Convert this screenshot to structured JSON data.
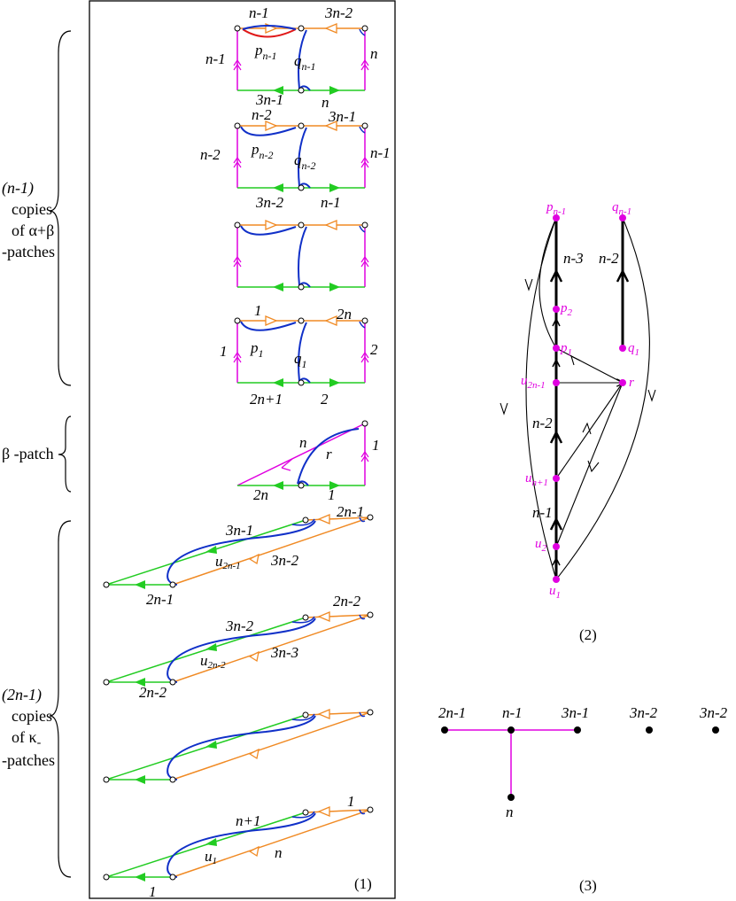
{
  "colors": {
    "magenta": "#e000e0",
    "green": "#22cc22",
    "orange": "#f08a24",
    "blue": "#1030c8",
    "red": "#e01818",
    "black": "#000000"
  },
  "panel1": {
    "caption": "(1)",
    "group1": {
      "line1": "(n-1)",
      "line2": "copies",
      "line3": "of α+β",
      "line4": "-patches"
    },
    "group2": {
      "label": "β -patch"
    },
    "group3": {
      "line1": "(2n-1)",
      "line2": "copies",
      "line3": "of κ",
      "line3_sub": "-",
      "line4": "-patches"
    },
    "ab1": {
      "top_left": "n-1",
      "top_right": "3n-2",
      "left": "n-1",
      "right": "n",
      "bottom_left": "3n-1",
      "bottom_right": "n",
      "p": "p",
      "p_sub": "n-1",
      "q": "q",
      "q_sub": "n-1"
    },
    "ab2": {
      "top_left": "n-2",
      "top_right": "3n-1",
      "left": "n-2",
      "right": "n-1",
      "bottom_left": "3n-2",
      "bottom_right": "n-1",
      "p": "p",
      "p_sub": "n-2",
      "q": "q",
      "q_sub": "n-2"
    },
    "ab4": {
      "top_left": "1",
      "top_right": "2n",
      "left": "1",
      "right": "2",
      "bottom_left": "2n+1",
      "bottom_right": "2",
      "p": "p",
      "p_sub": "1",
      "q": "q",
      "q_sub": "1"
    },
    "beta": {
      "diag": "n",
      "right": "1",
      "bottom_left": "2n",
      "bottom_right": "1",
      "r": "r"
    },
    "k1": {
      "top_right": "2n-1",
      "green": "3n-1",
      "orange": "3n-2",
      "bottom": "2n-1",
      "u": "u",
      "u_sub": "2n-1"
    },
    "k2": {
      "top_right": "2n-2",
      "green": "3n-2",
      "orange": "3n-3",
      "bottom": "2n-2",
      "u": "u",
      "u_sub": "2n-2"
    },
    "k4": {
      "top_right": "1",
      "green": "n+1",
      "orange": "n",
      "bottom": "1",
      "u": "u",
      "u_sub": "1"
    }
  },
  "panel2": {
    "caption": "(2)",
    "nodes": {
      "pn1": "p",
      "pn1_sub": "n-1",
      "qn1": "q",
      "qn1_sub": "n-1",
      "p2": "p",
      "p2_sub": "2",
      "p1": "p",
      "p1_sub": "1",
      "q1": "q",
      "q1_sub": "1",
      "u2n1": "u",
      "u2n1_sub": "2n-1",
      "r": "r",
      "un1": "u",
      "un1_sub": "n+1",
      "u2": "u",
      "u2_sub": "2",
      "u1": "u",
      "u1_sub": "1"
    },
    "edges": {
      "n3": "n-3",
      "n2_right": "n-2",
      "n2_mid": "n-2",
      "n1": "n-1"
    }
  },
  "panel3": {
    "caption": "(3)",
    "nodes": [
      "2n-1",
      "n-1",
      "3n-1",
      "3n-2",
      "3n-2",
      "n"
    ]
  }
}
